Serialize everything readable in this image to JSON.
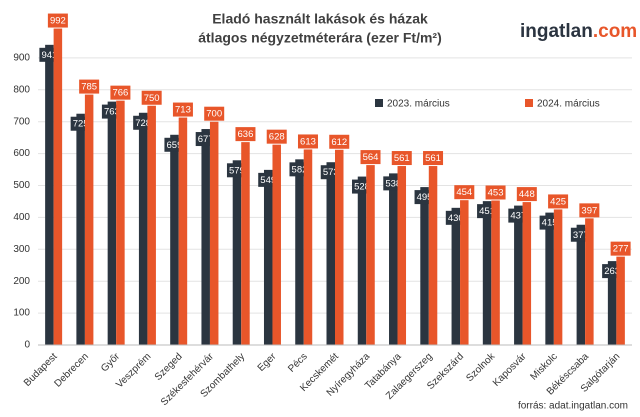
{
  "chart_data": {
    "type": "bar",
    "title": [
      "Eladó használt lakások és házak",
      "átlagos négyzetméterára (ezer Ft/m²)"
    ],
    "logo": {
      "name": "ingatlan",
      "suffix": ".com",
      "name_color": "#2b3440",
      "suffix_color": "#e8562a"
    },
    "source": "forrás: adat.ingatlan.com",
    "categories": [
      "Budapest",
      "Debrecen",
      "Győr",
      "Veszprém",
      "Szeged",
      "Székesfehérvár",
      "Szombathely",
      "Eger",
      "Pécs",
      "Kecskemét",
      "Nyíregyháza",
      "Tatabánya",
      "Zalaegerszeg",
      "Szekszárd",
      "Szolnok",
      "Kaposvár",
      "Miskolc",
      "Békéscsaba",
      "Salgótarján"
    ],
    "series": [
      {
        "name": "2023. március",
        "color": "#2b3540",
        "values": [
          941,
          725,
          763,
          728,
          659,
          677,
          579,
          549,
          582,
          573,
          528,
          538,
          495,
          430,
          451,
          437,
          415,
          377,
          263
        ]
      },
      {
        "name": "2024. március",
        "color": "#e8562a",
        "values": [
          992,
          785,
          766,
          750,
          713,
          700,
          636,
          628,
          613,
          612,
          564,
          561,
          561,
          454,
          453,
          448,
          425,
          397,
          277
        ]
      }
    ],
    "ylim": [
      0,
      1000
    ],
    "yticks": [
      0,
      100,
      200,
      300,
      400,
      500,
      600,
      700,
      800,
      900
    ],
    "grid": true
  }
}
